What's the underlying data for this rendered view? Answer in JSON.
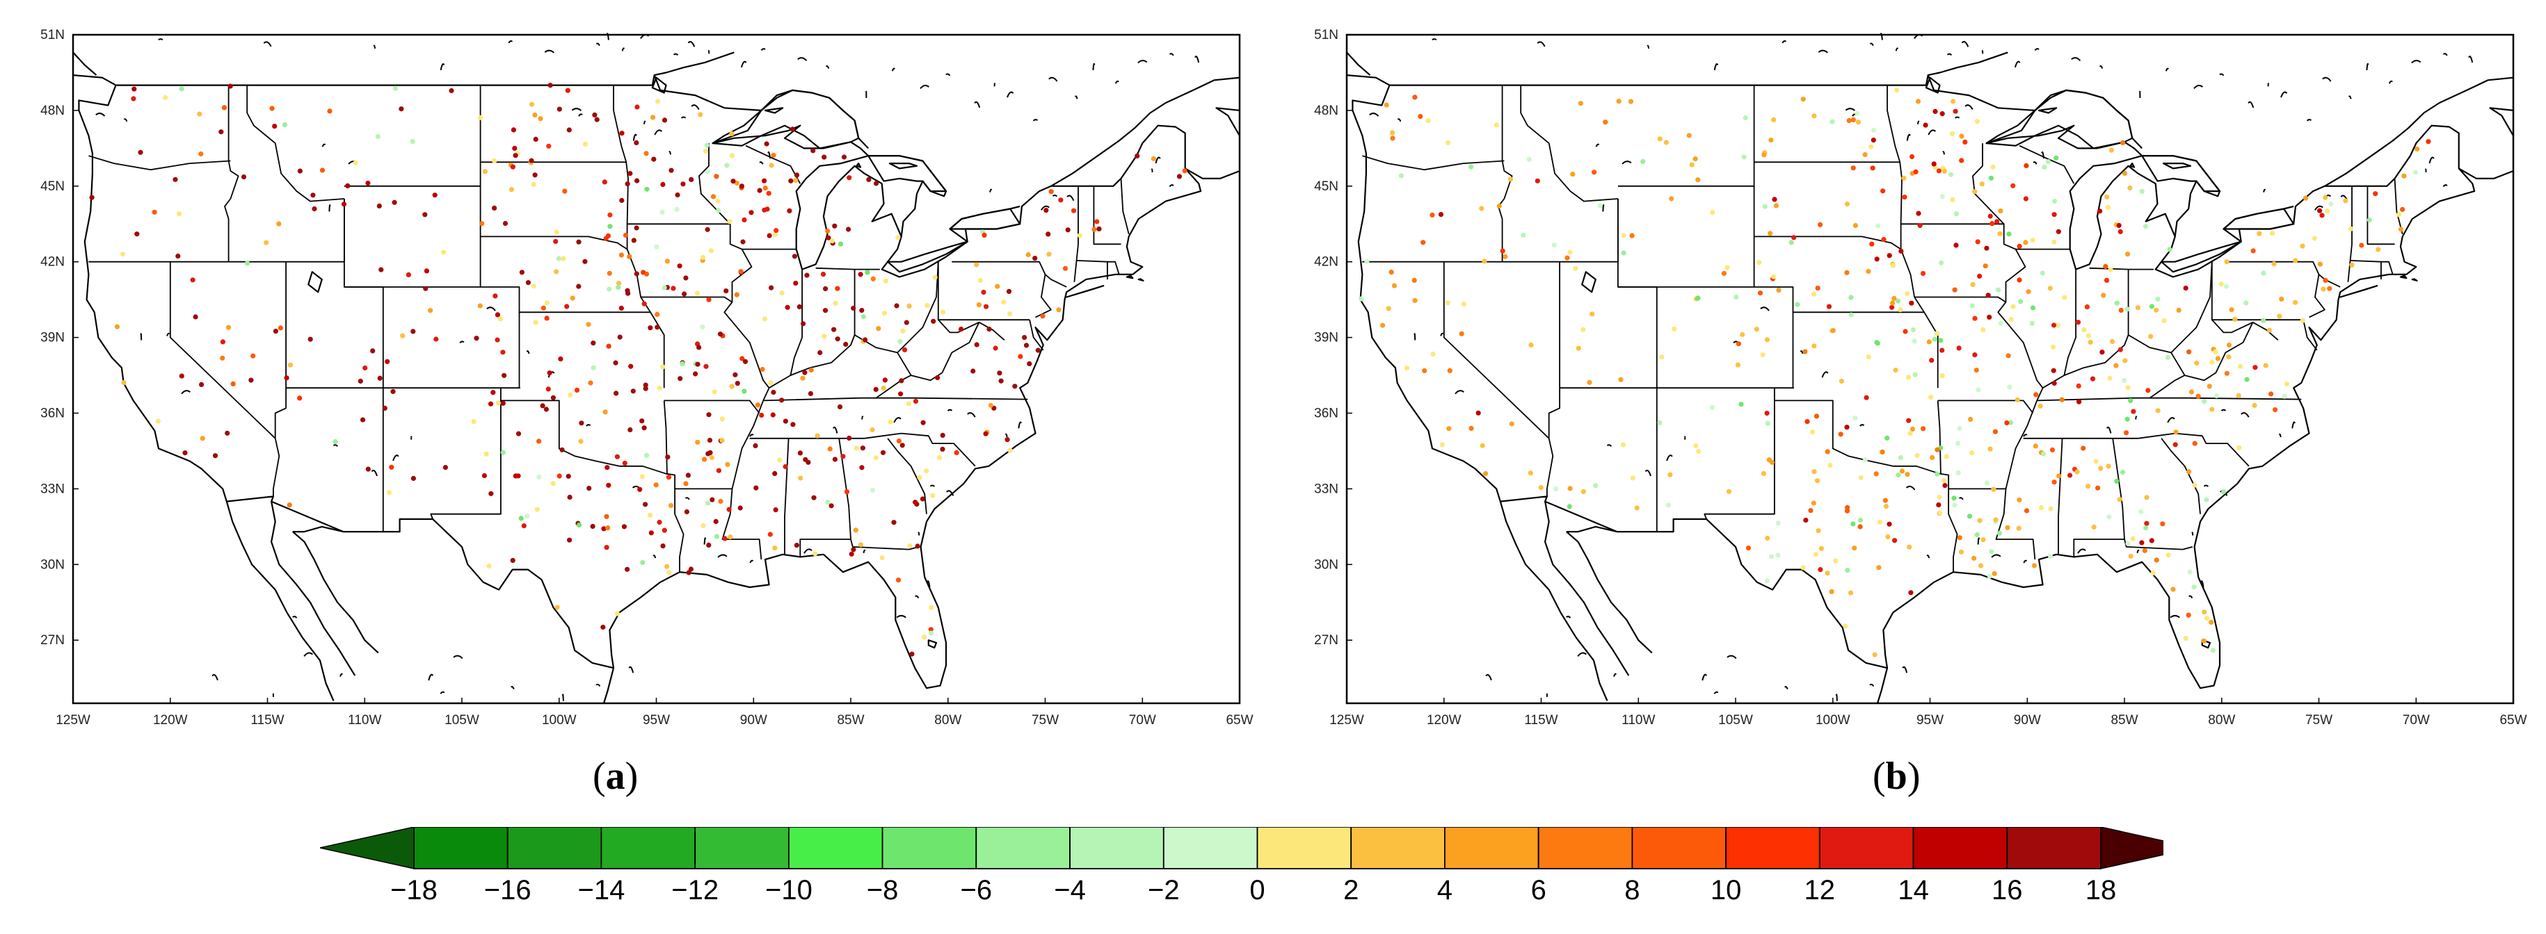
{
  "panels": [
    {
      "id": "a",
      "label": "a",
      "lat_ticks": [
        "51N",
        "48N",
        "45N",
        "42N",
        "39N",
        "36N",
        "33N",
        "30N",
        "27N"
      ],
      "lon_ticks": [
        "125W",
        "120W",
        "115W",
        "110W",
        "105W",
        "100W",
        "95W",
        "90W",
        "85W",
        "80W",
        "75W",
        "70W",
        "65W"
      ],
      "lon_range": [
        -125,
        -65
      ],
      "lat_range": [
        24.5,
        51
      ],
      "seed": 11,
      "distribution": "strong_positive"
    },
    {
      "id": "b",
      "label": "b",
      "lat_ticks": [
        "51N",
        "48N",
        "45N",
        "42N",
        "39N",
        "36N",
        "33N",
        "30N",
        "27N"
      ],
      "lon_ticks": [
        "125W",
        "120W",
        "115W",
        "110W",
        "105W",
        "100W",
        "95W",
        "90W",
        "85W",
        "80W",
        "75W",
        "70W",
        "65W"
      ],
      "lon_range": [
        -125,
        -65
      ],
      "lat_range": [
        24.5,
        51
      ],
      "seed": 29,
      "distribution": "moderate_positive"
    }
  ],
  "colorbar": {
    "tick_labels": [
      "−18",
      "−16",
      "−14",
      "−12",
      "−10",
      "−8",
      "−6",
      "−4",
      "−2",
      "0",
      "2",
      "4",
      "6",
      "8",
      "10",
      "12",
      "14",
      "16",
      "18"
    ],
    "colors": [
      "#0a8a0a",
      "#1a991a",
      "#22aa22",
      "#33bb33",
      "#48ee48",
      "#6ee66e",
      "#99f099",
      "#b6f4b6",
      "#ccf8cc",
      "#fce87a",
      "#fcc040",
      "#fca020",
      "#fc7a10",
      "#fc5a08",
      "#fc3000",
      "#e01a10",
      "#c00000",
      "#a00a0a"
    ],
    "low_extend_color": "#0a5a0a",
    "high_extend_color": "#4a0000"
  }
}
